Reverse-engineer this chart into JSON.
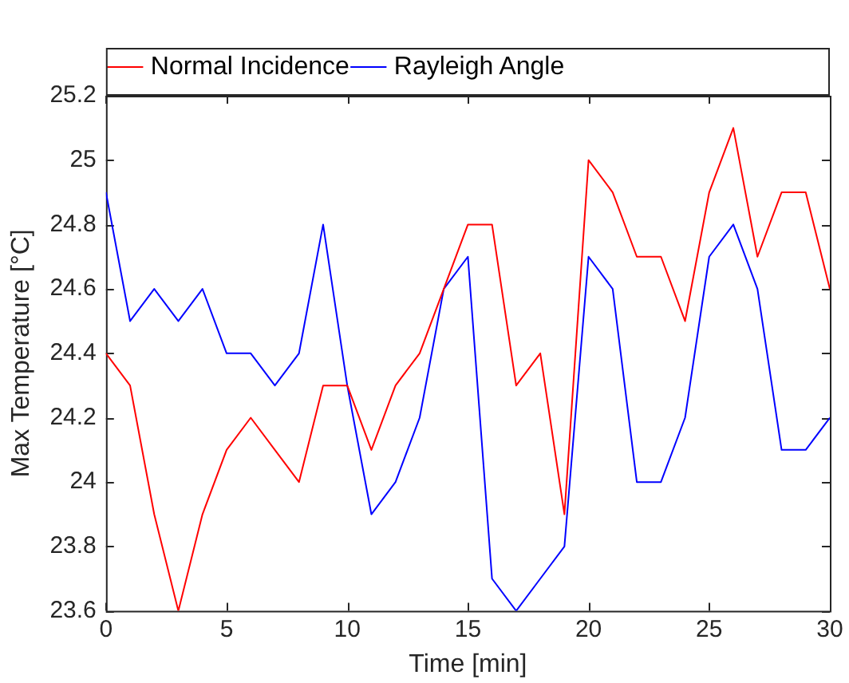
{
  "chart_data": {
    "type": "line",
    "xlabel": "Time [min]",
    "ylabel": "Max Temperature [°C]",
    "x": [
      0,
      1,
      2,
      3,
      4,
      5,
      6,
      7,
      8,
      9,
      10,
      11,
      12,
      13,
      14,
      15,
      16,
      17,
      18,
      19,
      20,
      21,
      22,
      23,
      24,
      25,
      26,
      27,
      28,
      29,
      30
    ],
    "series": [
      {
        "name": "Normal Incidence",
        "color": "#ff0000",
        "values": [
          24.4,
          24.3,
          23.9,
          23.6,
          23.9,
          24.1,
          24.2,
          24.1,
          24.0,
          24.3,
          24.3,
          24.1,
          24.3,
          24.4,
          24.6,
          24.8,
          24.8,
          24.3,
          24.4,
          23.9,
          25.0,
          24.9,
          24.7,
          24.7,
          24.5,
          24.9,
          25.1,
          24.7,
          24.9,
          24.9,
          24.6
        ]
      },
      {
        "name": "Rayleigh Angle",
        "color": "#0000ff",
        "values": [
          24.9,
          24.5,
          24.6,
          24.5,
          24.6,
          24.4,
          24.4,
          24.3,
          24.4,
          24.8,
          24.3,
          23.9,
          24.0,
          24.2,
          24.6,
          24.7,
          23.7,
          23.6,
          23.7,
          23.8,
          24.7,
          24.6,
          24.0,
          24.0,
          24.2,
          24.7,
          24.8,
          24.6,
          24.1,
          24.1,
          24.2
        ]
      }
    ],
    "xlim": [
      0,
      30
    ],
    "xticks": [
      0,
      5,
      10,
      15,
      20,
      25,
      30
    ],
    "ylim": [
      23.6,
      25.2
    ],
    "yticks": [
      23.6,
      23.8,
      24,
      24.2,
      24.4,
      24.6,
      24.8,
      25,
      25.2
    ],
    "grid": false,
    "legend": "top left",
    "marker": "none",
    "line_style": "solid"
  }
}
